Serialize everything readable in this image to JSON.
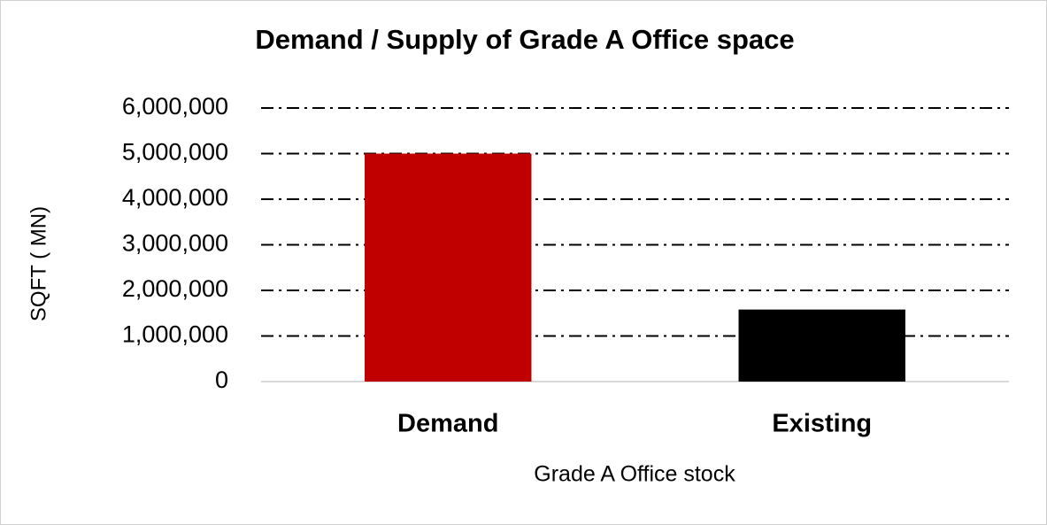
{
  "chart_data": {
    "type": "bar",
    "title": "Demand / Supply of Grade A Office space",
    "y_label": "SQFT ( MN)",
    "x_label": "Grade A Office stock",
    "categories": [
      "Demand",
      "Existing"
    ],
    "values": [
      5000000,
      1580000
    ],
    "colors": [
      "#c00000",
      "#000000"
    ],
    "ylim": [
      0,
      6000000
    ],
    "yticks": [
      0,
      {
        "value": 1000000,
        "label": "1,000,000"
      },
      {
        "value": 2000000,
        "label": "2,000,000"
      },
      {
        "value": 3000000,
        "label": "3,000,000"
      },
      {
        "value": 4000000,
        "label": "4,000,000"
      },
      {
        "value": 5000000,
        "label": "5,000,000"
      },
      {
        "value": 6000000,
        "label": "6,000,000"
      }
    ],
    "grid": true
  }
}
